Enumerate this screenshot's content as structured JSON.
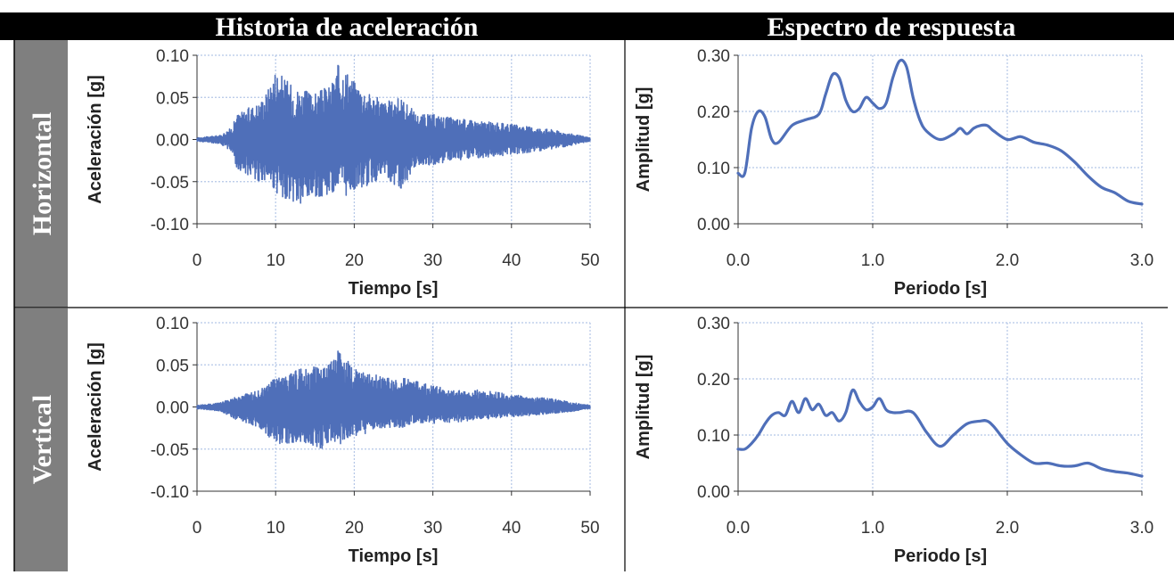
{
  "headers": {
    "left": "Historia de aceleración",
    "right": "Espectro de respuesta",
    "row1": "Horizontal",
    "row2": "Vertical"
  },
  "colors": {
    "header_bg": "#000000",
    "row_bg": "#7f7f7f",
    "series": "#4f6fb9",
    "grid": "#b4c6e7"
  },
  "chart_data": [
    {
      "id": "h_accel",
      "type": "line",
      "title": "",
      "xlabel": "Tiempo [s]",
      "ylabel": "Aceleración [g]",
      "xlim": [
        0,
        50
      ],
      "ylim": [
        -0.1,
        0.1
      ],
      "xticks": [
        0,
        10,
        20,
        30,
        40,
        50
      ],
      "yticks": [
        -0.1,
        -0.05,
        0,
        0.05,
        0.1
      ],
      "xtick_labels": [
        "0",
        "10",
        "20",
        "30",
        "40",
        "50"
      ],
      "ytick_labels": [
        "-0.10",
        "-0.05",
        "0.00",
        "0.05",
        "0.10"
      ],
      "grid": true,
      "series": [
        {
          "style": "dense-oscillation",
          "envelope_t": [
            0,
            3,
            4.5,
            5,
            8,
            9,
            10,
            12,
            13,
            15,
            17,
            18,
            19,
            20,
            22,
            24,
            26,
            28,
            30,
            33,
            36,
            40,
            45,
            48,
            50
          ],
          "envelope_upper": [
            0.002,
            0.005,
            0.015,
            0.03,
            0.045,
            0.06,
            0.085,
            0.065,
            0.06,
            0.055,
            0.065,
            0.09,
            0.085,
            0.07,
            0.055,
            0.045,
            0.05,
            0.03,
            0.03,
            0.025,
            0.022,
            0.018,
            0.012,
            0.006,
            0.002
          ],
          "envelope_lower": [
            -0.002,
            -0.005,
            -0.015,
            -0.035,
            -0.05,
            -0.05,
            -0.065,
            -0.075,
            -0.085,
            -0.07,
            -0.065,
            -0.06,
            -0.07,
            -0.06,
            -0.055,
            -0.045,
            -0.06,
            -0.03,
            -0.03,
            -0.025,
            -0.022,
            -0.018,
            -0.012,
            -0.006,
            -0.002
          ]
        }
      ]
    },
    {
      "id": "h_spec",
      "type": "line",
      "title": "",
      "xlabel": "Periodo [s]",
      "ylabel": "Amplitud [g]",
      "xlim": [
        0,
        3
      ],
      "ylim": [
        0,
        0.3
      ],
      "xticks": [
        0,
        1,
        2,
        3
      ],
      "yticks": [
        0,
        0.1,
        0.2,
        0.3
      ],
      "xtick_labels": [
        "0.0",
        "1.0",
        "2.0",
        "3.0"
      ],
      "ytick_labels": [
        "0.00",
        "0.10",
        "0.20",
        "0.30"
      ],
      "grid": true,
      "series": [
        {
          "x": [
            0.0,
            0.05,
            0.1,
            0.15,
            0.2,
            0.25,
            0.3,
            0.4,
            0.5,
            0.6,
            0.65,
            0.7,
            0.75,
            0.8,
            0.85,
            0.9,
            0.95,
            1.0,
            1.05,
            1.1,
            1.15,
            1.2,
            1.25,
            1.3,
            1.35,
            1.4,
            1.5,
            1.6,
            1.65,
            1.7,
            1.75,
            1.8,
            1.85,
            1.9,
            2.0,
            2.1,
            2.2,
            2.3,
            2.4,
            2.5,
            2.6,
            2.7,
            2.8,
            2.9,
            3.0
          ],
          "y": [
            0.09,
            0.09,
            0.17,
            0.2,
            0.19,
            0.15,
            0.145,
            0.175,
            0.185,
            0.195,
            0.23,
            0.265,
            0.26,
            0.22,
            0.2,
            0.205,
            0.225,
            0.215,
            0.205,
            0.215,
            0.26,
            0.29,
            0.28,
            0.225,
            0.185,
            0.165,
            0.15,
            0.16,
            0.17,
            0.16,
            0.17,
            0.175,
            0.175,
            0.165,
            0.15,
            0.155,
            0.145,
            0.14,
            0.13,
            0.11,
            0.085,
            0.065,
            0.055,
            0.04,
            0.035
          ]
        }
      ]
    },
    {
      "id": "v_accel",
      "type": "line",
      "title": "",
      "xlabel": "Tiempo [s]",
      "ylabel": "Aceleración [g]",
      "xlim": [
        0,
        50
      ],
      "ylim": [
        -0.1,
        0.1
      ],
      "xticks": [
        0,
        10,
        20,
        30,
        40,
        50
      ],
      "yticks": [
        -0.1,
        -0.05,
        0,
        0.05,
        0.1
      ],
      "xtick_labels": [
        "0",
        "10",
        "20",
        "30",
        "40",
        "50"
      ],
      "ytick_labels": [
        "-0.10",
        "-0.05",
        "0.00",
        "0.05",
        "0.10"
      ],
      "grid": true,
      "series": [
        {
          "style": "dense-oscillation",
          "envelope_t": [
            0,
            3,
            5,
            8,
            10,
            12,
            14,
            16,
            17,
            18,
            19,
            20,
            22,
            24,
            26,
            28,
            30,
            33,
            36,
            40,
            45,
            48,
            50
          ],
          "envelope_upper": [
            0.002,
            0.005,
            0.012,
            0.02,
            0.035,
            0.04,
            0.05,
            0.045,
            0.055,
            0.075,
            0.06,
            0.045,
            0.04,
            0.035,
            0.035,
            0.03,
            0.025,
            0.02,
            0.02,
            0.015,
            0.01,
            0.005,
            0.002
          ],
          "envelope_lower": [
            -0.002,
            -0.005,
            -0.015,
            -0.025,
            -0.045,
            -0.045,
            -0.045,
            -0.05,
            -0.04,
            -0.045,
            -0.04,
            -0.035,
            -0.03,
            -0.025,
            -0.025,
            -0.02,
            -0.02,
            -0.018,
            -0.015,
            -0.012,
            -0.008,
            -0.005,
            -0.002
          ]
        }
      ]
    },
    {
      "id": "v_spec",
      "type": "line",
      "title": "",
      "xlabel": "Periodo [s]",
      "ylabel": "Amplitud [g]",
      "xlim": [
        0,
        3
      ],
      "ylim": [
        0,
        0.3
      ],
      "xticks": [
        0,
        1,
        2,
        3
      ],
      "yticks": [
        0,
        0.1,
        0.2,
        0.3
      ],
      "xtick_labels": [
        "0.0",
        "1.0",
        "2.0",
        "3.0"
      ],
      "ytick_labels": [
        "0.00",
        "0.10",
        "0.20",
        "0.30"
      ],
      "grid": true,
      "series": [
        {
          "x": [
            0.0,
            0.05,
            0.1,
            0.15,
            0.2,
            0.25,
            0.3,
            0.35,
            0.4,
            0.45,
            0.5,
            0.55,
            0.6,
            0.65,
            0.7,
            0.75,
            0.8,
            0.85,
            0.9,
            0.95,
            1.0,
            1.05,
            1.1,
            1.15,
            1.2,
            1.3,
            1.4,
            1.5,
            1.6,
            1.7,
            1.8,
            1.85,
            1.9,
            2.0,
            2.1,
            2.2,
            2.3,
            2.4,
            2.5,
            2.6,
            2.7,
            2.8,
            2.9,
            3.0
          ],
          "y": [
            0.075,
            0.075,
            0.085,
            0.1,
            0.12,
            0.135,
            0.14,
            0.135,
            0.16,
            0.14,
            0.165,
            0.145,
            0.155,
            0.135,
            0.14,
            0.125,
            0.14,
            0.18,
            0.16,
            0.145,
            0.15,
            0.165,
            0.145,
            0.14,
            0.14,
            0.14,
            0.105,
            0.08,
            0.1,
            0.12,
            0.125,
            0.125,
            0.115,
            0.085,
            0.065,
            0.05,
            0.05,
            0.045,
            0.045,
            0.05,
            0.04,
            0.035,
            0.032,
            0.027
          ]
        }
      ]
    }
  ]
}
